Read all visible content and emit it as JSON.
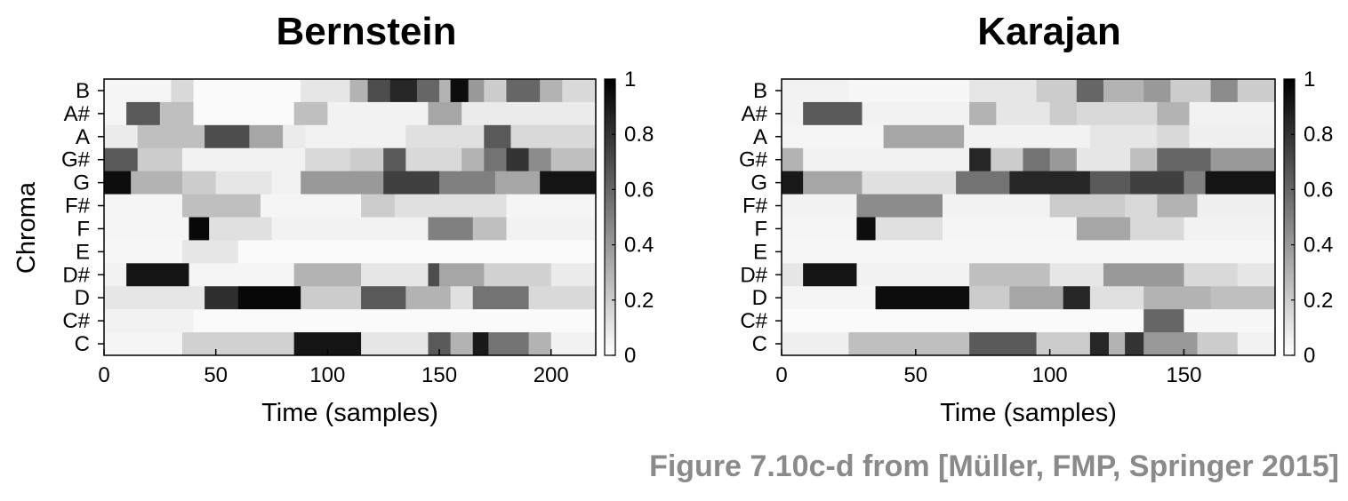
{
  "caption": "Figure 7.10c-d from [Müller, FMP, Springer 2015]",
  "chart_data": [
    {
      "type": "heatmap",
      "title": "Bernstein",
      "xlabel": "Time (samples)",
      "ylabel": "Chroma",
      "y_categories": [
        "B",
        "A#",
        "A",
        "G#",
        "G",
        "F#",
        "F",
        "E",
        "D#",
        "D",
        "C#",
        "C"
      ],
      "xlim": [
        0,
        220
      ],
      "xticks": [
        0,
        50,
        100,
        150,
        200
      ],
      "colorbar": {
        "range": [
          0,
          1
        ],
        "ticks": [
          "1",
          "0.8",
          "0.6",
          "0.4",
          "0.2",
          "0"
        ],
        "colormap": "white-to-black"
      },
      "rows": {
        "B": [
          [
            0,
            30,
            0.04
          ],
          [
            30,
            40,
            0.15
          ],
          [
            40,
            88,
            0.02
          ],
          [
            88,
            110,
            0.1
          ],
          [
            110,
            118,
            0.3
          ],
          [
            118,
            128,
            0.7
          ],
          [
            128,
            140,
            0.85
          ],
          [
            140,
            150,
            0.6
          ],
          [
            150,
            155,
            0.3
          ],
          [
            155,
            163,
            0.95
          ],
          [
            163,
            170,
            0.4
          ],
          [
            170,
            180,
            0.2
          ],
          [
            180,
            195,
            0.6
          ],
          [
            195,
            205,
            0.3
          ],
          [
            205,
            220,
            0.15
          ]
        ],
        "A#": [
          [
            0,
            10,
            0.04
          ],
          [
            10,
            25,
            0.65
          ],
          [
            25,
            40,
            0.25
          ],
          [
            40,
            85,
            0.02
          ],
          [
            85,
            100,
            0.25
          ],
          [
            100,
            145,
            0.05
          ],
          [
            145,
            160,
            0.35
          ],
          [
            160,
            220,
            0.08
          ]
        ],
        "A": [
          [
            0,
            15,
            0.08
          ],
          [
            15,
            45,
            0.25
          ],
          [
            45,
            65,
            0.7
          ],
          [
            65,
            80,
            0.35
          ],
          [
            80,
            90,
            0.08
          ],
          [
            90,
            135,
            0.05
          ],
          [
            135,
            170,
            0.12
          ],
          [
            170,
            182,
            0.65
          ],
          [
            182,
            220,
            0.15
          ]
        ],
        "G#": [
          [
            0,
            15,
            0.65
          ],
          [
            15,
            35,
            0.2
          ],
          [
            35,
            90,
            0.05
          ],
          [
            90,
            110,
            0.15
          ],
          [
            110,
            125,
            0.2
          ],
          [
            125,
            135,
            0.65
          ],
          [
            135,
            160,
            0.15
          ],
          [
            160,
            170,
            0.3
          ],
          [
            170,
            180,
            0.55
          ],
          [
            180,
            190,
            0.8
          ],
          [
            190,
            200,
            0.45
          ],
          [
            200,
            220,
            0.25
          ]
        ],
        "G": [
          [
            0,
            12,
            0.95
          ],
          [
            12,
            35,
            0.3
          ],
          [
            35,
            50,
            0.2
          ],
          [
            50,
            75,
            0.1
          ],
          [
            75,
            88,
            0.05
          ],
          [
            88,
            125,
            0.4
          ],
          [
            125,
            150,
            0.75
          ],
          [
            150,
            175,
            0.5
          ],
          [
            175,
            195,
            0.35
          ],
          [
            195,
            220,
            0.92
          ]
        ],
        "F#": [
          [
            0,
            35,
            0.04
          ],
          [
            35,
            70,
            0.25
          ],
          [
            70,
            115,
            0.04
          ],
          [
            115,
            130,
            0.2
          ],
          [
            130,
            180,
            0.12
          ],
          [
            180,
            220,
            0.04
          ]
        ],
        "F": [
          [
            0,
            38,
            0.04
          ],
          [
            38,
            47,
            0.97
          ],
          [
            47,
            75,
            0.12
          ],
          [
            75,
            145,
            0.05
          ],
          [
            145,
            165,
            0.5
          ],
          [
            165,
            180,
            0.25
          ],
          [
            180,
            220,
            0.05
          ]
        ],
        "E": [
          [
            0,
            35,
            0.03
          ],
          [
            35,
            60,
            0.1
          ],
          [
            60,
            220,
            0.02
          ]
        ],
        "D#": [
          [
            0,
            10,
            0.05
          ],
          [
            10,
            38,
            0.92
          ],
          [
            38,
            85,
            0.04
          ],
          [
            85,
            115,
            0.3
          ],
          [
            115,
            145,
            0.1
          ],
          [
            145,
            150,
            0.7
          ],
          [
            150,
            170,
            0.35
          ],
          [
            170,
            200,
            0.18
          ],
          [
            200,
            220,
            0.08
          ]
        ],
        "D": [
          [
            0,
            45,
            0.1
          ],
          [
            45,
            60,
            0.82
          ],
          [
            60,
            88,
            0.97
          ],
          [
            88,
            115,
            0.2
          ],
          [
            115,
            135,
            0.65
          ],
          [
            135,
            155,
            0.3
          ],
          [
            155,
            165,
            0.12
          ],
          [
            165,
            190,
            0.55
          ],
          [
            190,
            220,
            0.15
          ]
        ],
        "C#": [
          [
            0,
            40,
            0.05
          ],
          [
            40,
            220,
            0.02
          ]
        ],
        "C": [
          [
            0,
            35,
            0.04
          ],
          [
            35,
            85,
            0.18
          ],
          [
            85,
            115,
            0.92
          ],
          [
            115,
            145,
            0.1
          ],
          [
            145,
            155,
            0.65
          ],
          [
            155,
            165,
            0.3
          ],
          [
            165,
            172,
            0.9
          ],
          [
            172,
            190,
            0.55
          ],
          [
            190,
            200,
            0.3
          ],
          [
            200,
            220,
            0.05
          ]
        ]
      }
    },
    {
      "type": "heatmap",
      "title": "Karajan",
      "xlabel": "Time (samples)",
      "ylabel": "",
      "y_categories": [
        "B",
        "A#",
        "A",
        "G#",
        "G",
        "F#",
        "F",
        "E",
        "D#",
        "D",
        "C#",
        "C"
      ],
      "xlim": [
        0,
        184
      ],
      "xticks": [
        0,
        50,
        100,
        150
      ],
      "colorbar": {
        "range": [
          0,
          1
        ],
        "ticks": [
          "1",
          "0.8",
          "0.6",
          "0.4",
          "0.2",
          "0"
        ],
        "colormap": "white-to-black"
      },
      "rows": {
        "B": [
          [
            0,
            25,
            0.05
          ],
          [
            25,
            70,
            0.03
          ],
          [
            70,
            95,
            0.1
          ],
          [
            95,
            110,
            0.2
          ],
          [
            110,
            120,
            0.6
          ],
          [
            120,
            135,
            0.3
          ],
          [
            135,
            145,
            0.4
          ],
          [
            145,
            160,
            0.2
          ],
          [
            160,
            170,
            0.45
          ],
          [
            170,
            184,
            0.2
          ]
        ],
        "A#": [
          [
            0,
            8,
            0.05
          ],
          [
            8,
            30,
            0.65
          ],
          [
            30,
            70,
            0.05
          ],
          [
            70,
            80,
            0.3
          ],
          [
            80,
            100,
            0.1
          ],
          [
            100,
            110,
            0.2
          ],
          [
            110,
            140,
            0.15
          ],
          [
            140,
            152,
            0.3
          ],
          [
            152,
            184,
            0.05
          ]
        ],
        "A": [
          [
            0,
            38,
            0.04
          ],
          [
            38,
            68,
            0.35
          ],
          [
            68,
            115,
            0.05
          ],
          [
            115,
            140,
            0.1
          ],
          [
            140,
            152,
            0.15
          ],
          [
            152,
            184,
            0.06
          ]
        ],
        "G#": [
          [
            0,
            8,
            0.3
          ],
          [
            8,
            70,
            0.05
          ],
          [
            70,
            78,
            0.85
          ],
          [
            78,
            90,
            0.2
          ],
          [
            90,
            100,
            0.55
          ],
          [
            100,
            110,
            0.4
          ],
          [
            110,
            130,
            0.1
          ],
          [
            130,
            140,
            0.25
          ],
          [
            140,
            160,
            0.6
          ],
          [
            160,
            184,
            0.4
          ]
        ],
        "G": [
          [
            0,
            8,
            0.9
          ],
          [
            8,
            30,
            0.35
          ],
          [
            30,
            65,
            0.12
          ],
          [
            65,
            85,
            0.55
          ],
          [
            85,
            115,
            0.85
          ],
          [
            115,
            130,
            0.65
          ],
          [
            130,
            150,
            0.75
          ],
          [
            150,
            158,
            0.5
          ],
          [
            158,
            184,
            0.92
          ]
        ],
        "F#": [
          [
            0,
            28,
            0.05
          ],
          [
            28,
            60,
            0.45
          ],
          [
            60,
            100,
            0.05
          ],
          [
            100,
            128,
            0.2
          ],
          [
            128,
            140,
            0.15
          ],
          [
            140,
            155,
            0.3
          ],
          [
            155,
            184,
            0.06
          ]
        ],
        "F": [
          [
            0,
            28,
            0.04
          ],
          [
            28,
            35,
            0.95
          ],
          [
            35,
            60,
            0.12
          ],
          [
            60,
            110,
            0.04
          ],
          [
            110,
            130,
            0.35
          ],
          [
            130,
            150,
            0.15
          ],
          [
            150,
            184,
            0.05
          ]
        ],
        "E": [
          [
            0,
            184,
            0.03
          ]
        ],
        "D#": [
          [
            0,
            8,
            0.1
          ],
          [
            8,
            28,
            0.92
          ],
          [
            28,
            70,
            0.05
          ],
          [
            70,
            100,
            0.25
          ],
          [
            100,
            120,
            0.1
          ],
          [
            120,
            150,
            0.4
          ],
          [
            150,
            170,
            0.15
          ],
          [
            170,
            184,
            0.1
          ]
        ],
        "D": [
          [
            0,
            35,
            0.04
          ],
          [
            35,
            70,
            0.95
          ],
          [
            70,
            85,
            0.2
          ],
          [
            85,
            105,
            0.35
          ],
          [
            105,
            115,
            0.85
          ],
          [
            115,
            135,
            0.12
          ],
          [
            135,
            160,
            0.3
          ],
          [
            160,
            184,
            0.25
          ]
        ],
        "C#": [
          [
            0,
            135,
            0.02
          ],
          [
            135,
            150,
            0.6
          ],
          [
            150,
            184,
            0.03
          ]
        ],
        "C": [
          [
            0,
            25,
            0.06
          ],
          [
            25,
            70,
            0.25
          ],
          [
            70,
            95,
            0.65
          ],
          [
            95,
            115,
            0.2
          ],
          [
            115,
            122,
            0.85
          ],
          [
            122,
            128,
            0.3
          ],
          [
            128,
            135,
            0.8
          ],
          [
            135,
            155,
            0.4
          ],
          [
            155,
            170,
            0.2
          ],
          [
            170,
            184,
            0.05
          ]
        ]
      }
    }
  ]
}
